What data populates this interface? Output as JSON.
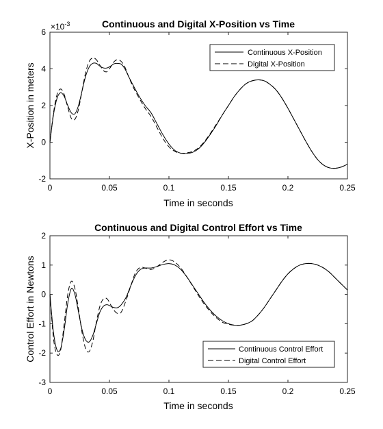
{
  "chart_data": [
    {
      "type": "line",
      "title": "Continuous and Digital X-Position vs Time",
      "xlabel": "Time in seconds",
      "ylabel": "X-Position in meters",
      "exponent_label": "×10",
      "exponent_power": "-3",
      "xlim": [
        0,
        0.25
      ],
      "ylim": [
        -2,
        6
      ],
      "xticks": [
        0,
        0.05,
        0.1,
        0.15,
        0.2,
        0.25
      ],
      "xtick_labels": [
        "0",
        "0.05",
        "0.1",
        "0.15",
        "0.2",
        "0.25"
      ],
      "yticks": [
        -2,
        0,
        2,
        4,
        6
      ],
      "ytick_labels": [
        "-2",
        "0",
        "2",
        "4",
        "6"
      ],
      "legend_position": "top-right",
      "series": [
        {
          "name": "Continuous X-Position",
          "style": "solid",
          "x": [
            0,
            0.003,
            0.006,
            0.009,
            0.012,
            0.015,
            0.018,
            0.021,
            0.024,
            0.027,
            0.03,
            0.033,
            0.036,
            0.039,
            0.042,
            0.045,
            0.048,
            0.051,
            0.054,
            0.057,
            0.06,
            0.063,
            0.066,
            0.07,
            0.075,
            0.08,
            0.085,
            0.09,
            0.095,
            0.1,
            0.105,
            0.11,
            0.115,
            0.12,
            0.125,
            0.13,
            0.135,
            0.14,
            0.145,
            0.15,
            0.155,
            0.16,
            0.165,
            0.17,
            0.175,
            0.18,
            0.185,
            0.19,
            0.195,
            0.2,
            0.205,
            0.21,
            0.215,
            0.22,
            0.225,
            0.23,
            0.235,
            0.24,
            0.245,
            0.25
          ],
          "y": [
            0,
            1.5,
            2.4,
            2.7,
            2.5,
            2.0,
            1.6,
            1.55,
            2.0,
            2.8,
            3.6,
            4.1,
            4.3,
            4.3,
            4.15,
            4.05,
            4.05,
            4.15,
            4.28,
            4.3,
            4.25,
            4.0,
            3.6,
            3.1,
            2.5,
            2.0,
            1.6,
            1.0,
            0.4,
            -0.1,
            -0.45,
            -0.6,
            -0.62,
            -0.55,
            -0.35,
            0.0,
            0.45,
            0.95,
            1.5,
            2.0,
            2.5,
            2.9,
            3.2,
            3.35,
            3.4,
            3.35,
            3.15,
            2.85,
            2.4,
            1.85,
            1.25,
            0.65,
            0.05,
            -0.5,
            -0.95,
            -1.25,
            -1.4,
            -1.42,
            -1.35,
            -1.2
          ]
        },
        {
          "name": "Digital X-Position",
          "style": "dashed",
          "x": [
            0,
            0.003,
            0.006,
            0.009,
            0.012,
            0.015,
            0.018,
            0.021,
            0.024,
            0.027,
            0.03,
            0.033,
            0.036,
            0.039,
            0.042,
            0.045,
            0.048,
            0.051,
            0.054,
            0.057,
            0.06,
            0.063,
            0.066,
            0.07,
            0.075,
            0.08,
            0.085,
            0.09,
            0.095,
            0.1,
            0.105,
            0.11,
            0.115,
            0.12,
            0.125,
            0.13,
            0.135,
            0.14,
            0.145,
            0.15,
            0.155,
            0.16,
            0.165,
            0.17,
            0.175,
            0.18,
            0.185,
            0.19,
            0.195,
            0.2,
            0.205,
            0.21,
            0.215,
            0.22,
            0.225,
            0.23,
            0.235,
            0.24,
            0.245,
            0.25
          ],
          "y": [
            0,
            1.6,
            2.6,
            2.9,
            2.6,
            1.9,
            1.3,
            1.25,
            1.8,
            2.8,
            3.8,
            4.4,
            4.6,
            4.5,
            4.2,
            3.9,
            3.85,
            4.1,
            4.4,
            4.5,
            4.4,
            4.1,
            3.6,
            3.0,
            2.4,
            1.85,
            1.4,
            0.8,
            0.2,
            -0.25,
            -0.5,
            -0.6,
            -0.58,
            -0.5,
            -0.3,
            0.05,
            0.5,
            1.0,
            1.5,
            2.0,
            2.5,
            2.9,
            3.2,
            3.35,
            3.4,
            3.35,
            3.15,
            2.85,
            2.4,
            1.85,
            1.25,
            0.65,
            0.05,
            -0.5,
            -0.95,
            -1.25,
            -1.4,
            -1.42,
            -1.35,
            -1.2
          ]
        }
      ]
    },
    {
      "type": "line",
      "title": "Continuous and Digital Control Effort vs Time",
      "xlabel": "Time in seconds",
      "ylabel": "Control Effort in Newtons",
      "xlim": [
        0,
        0.25
      ],
      "ylim": [
        -3,
        2
      ],
      "xticks": [
        0,
        0.05,
        0.1,
        0.15,
        0.2,
        0.25
      ],
      "xtick_labels": [
        "0",
        "0.05",
        "0.1",
        "0.15",
        "0.2",
        "0.25"
      ],
      "yticks": [
        -3,
        -2,
        -1,
        0,
        1,
        2
      ],
      "ytick_labels": [
        "-3",
        "-2",
        "-1",
        "0",
        "1",
        "2"
      ],
      "legend_position": "bottom-right",
      "series": [
        {
          "name": "Continuous Control Effort",
          "style": "solid",
          "x": [
            0,
            0.003,
            0.006,
            0.009,
            0.012,
            0.015,
            0.018,
            0.021,
            0.024,
            0.027,
            0.03,
            0.033,
            0.036,
            0.039,
            0.042,
            0.045,
            0.048,
            0.051,
            0.054,
            0.057,
            0.06,
            0.064,
            0.068,
            0.072,
            0.076,
            0.08,
            0.085,
            0.09,
            0.095,
            0.1,
            0.105,
            0.11,
            0.115,
            0.12,
            0.125,
            0.13,
            0.135,
            0.14,
            0.145,
            0.15,
            0.155,
            0.16,
            0.165,
            0.17,
            0.175,
            0.18,
            0.185,
            0.19,
            0.195,
            0.2,
            0.205,
            0.21,
            0.215,
            0.22,
            0.225,
            0.23,
            0.235,
            0.24,
            0.245,
            0.25
          ],
          "y": [
            0,
            -1.3,
            -1.9,
            -1.85,
            -1.2,
            -0.3,
            0.2,
            0.0,
            -0.6,
            -1.2,
            -1.55,
            -1.62,
            -1.4,
            -1.0,
            -0.6,
            -0.4,
            -0.35,
            -0.4,
            -0.45,
            -0.45,
            -0.35,
            -0.1,
            0.3,
            0.65,
            0.85,
            0.9,
            0.9,
            0.95,
            1.02,
            1.05,
            1.0,
            0.85,
            0.6,
            0.3,
            0.0,
            -0.3,
            -0.55,
            -0.75,
            -0.9,
            -1.0,
            -1.05,
            -1.05,
            -1.0,
            -0.9,
            -0.7,
            -0.45,
            -0.15,
            0.15,
            0.45,
            0.7,
            0.88,
            1.0,
            1.05,
            1.05,
            1.0,
            0.9,
            0.75,
            0.55,
            0.35,
            0.15
          ]
        },
        {
          "name": "Digital Control Effort",
          "style": "dashed",
          "x": [
            0,
            0.003,
            0.006,
            0.009,
            0.012,
            0.015,
            0.018,
            0.021,
            0.024,
            0.027,
            0.03,
            0.033,
            0.036,
            0.039,
            0.042,
            0.045,
            0.048,
            0.051,
            0.054,
            0.057,
            0.06,
            0.064,
            0.068,
            0.072,
            0.076,
            0.08,
            0.085,
            0.09,
            0.095,
            0.1,
            0.105,
            0.11,
            0.115,
            0.12,
            0.125,
            0.13,
            0.135,
            0.14,
            0.145,
            0.15,
            0.155,
            0.16,
            0.165,
            0.17,
            0.175,
            0.18,
            0.185,
            0.19,
            0.195,
            0.2,
            0.205,
            0.21,
            0.215,
            0.22,
            0.225,
            0.23,
            0.235,
            0.24,
            0.245,
            0.25
          ],
          "y": [
            0,
            -1.5,
            -2.05,
            -1.9,
            -1.0,
            0.0,
            0.45,
            0.2,
            -0.5,
            -1.3,
            -1.85,
            -1.95,
            -1.6,
            -0.95,
            -0.4,
            -0.15,
            -0.15,
            -0.35,
            -0.55,
            -0.65,
            -0.6,
            -0.2,
            0.3,
            0.75,
            0.92,
            0.9,
            0.85,
            0.95,
            1.1,
            1.18,
            1.1,
            0.9,
            0.6,
            0.28,
            -0.05,
            -0.35,
            -0.6,
            -0.8,
            -0.95,
            -1.02,
            -1.05,
            -1.05,
            -1.0,
            -0.9,
            -0.7,
            -0.45,
            -0.15,
            0.15,
            0.45,
            0.7,
            0.88,
            1.0,
            1.05,
            1.05,
            1.0,
            0.9,
            0.75,
            0.55,
            0.35,
            0.15
          ]
        }
      ]
    }
  ]
}
